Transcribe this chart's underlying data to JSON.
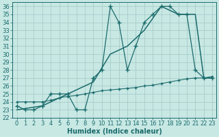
{
  "xlabel": "Humidex (Indice chaleur)",
  "background_color": "#c8e8e4",
  "grid_color": "#a8ccca",
  "line_color": "#1a6b6b",
  "xlim": [
    -0.5,
    23.5
  ],
  "ylim": [
    22,
    36.5
  ],
  "xticks": [
    0,
    1,
    2,
    3,
    4,
    5,
    6,
    7,
    8,
    9,
    10,
    11,
    12,
    13,
    14,
    15,
    16,
    17,
    18,
    19,
    20,
    21,
    22,
    23
  ],
  "yticks": [
    22,
    23,
    24,
    25,
    26,
    27,
    28,
    29,
    30,
    31,
    32,
    33,
    34,
    35,
    36
  ],
  "line1_x": [
    0,
    1,
    2,
    3,
    4,
    5,
    6,
    7,
    8,
    9,
    10,
    11,
    12,
    13,
    14,
    15,
    16,
    17,
    18,
    19,
    20,
    21,
    22,
    23
  ],
  "line1_y": [
    23.5,
    23,
    23,
    23.5,
    25,
    25,
    25,
    23,
    23,
    27,
    28,
    36,
    34,
    28,
    31,
    34,
    35,
    36,
    36,
    35,
    35,
    28,
    27,
    27
  ],
  "line2_x": [
    0,
    3,
    5,
    7,
    9,
    11,
    13,
    15,
    17,
    19,
    20,
    21,
    22,
    23
  ],
  "line2_y": [
    23,
    23.5,
    24.5,
    25.5,
    26.5,
    30,
    31,
    33,
    36,
    35,
    35,
    35,
    27,
    27
  ],
  "line3_x": [
    0,
    1,
    2,
    3,
    4,
    5,
    6,
    7,
    8,
    9,
    10,
    11,
    12,
    13,
    14,
    15,
    16,
    17,
    18,
    19,
    20,
    21,
    22,
    23
  ],
  "line3_y": [
    24,
    24,
    24,
    24,
    24.2,
    24.5,
    24.7,
    24.8,
    25,
    25.2,
    25.4,
    25.5,
    25.6,
    25.7,
    25.8,
    26,
    26.1,
    26.3,
    26.5,
    26.7,
    26.9,
    27,
    27,
    27.2
  ],
  "fontsize_label": 7,
  "fontsize_tick": 6
}
